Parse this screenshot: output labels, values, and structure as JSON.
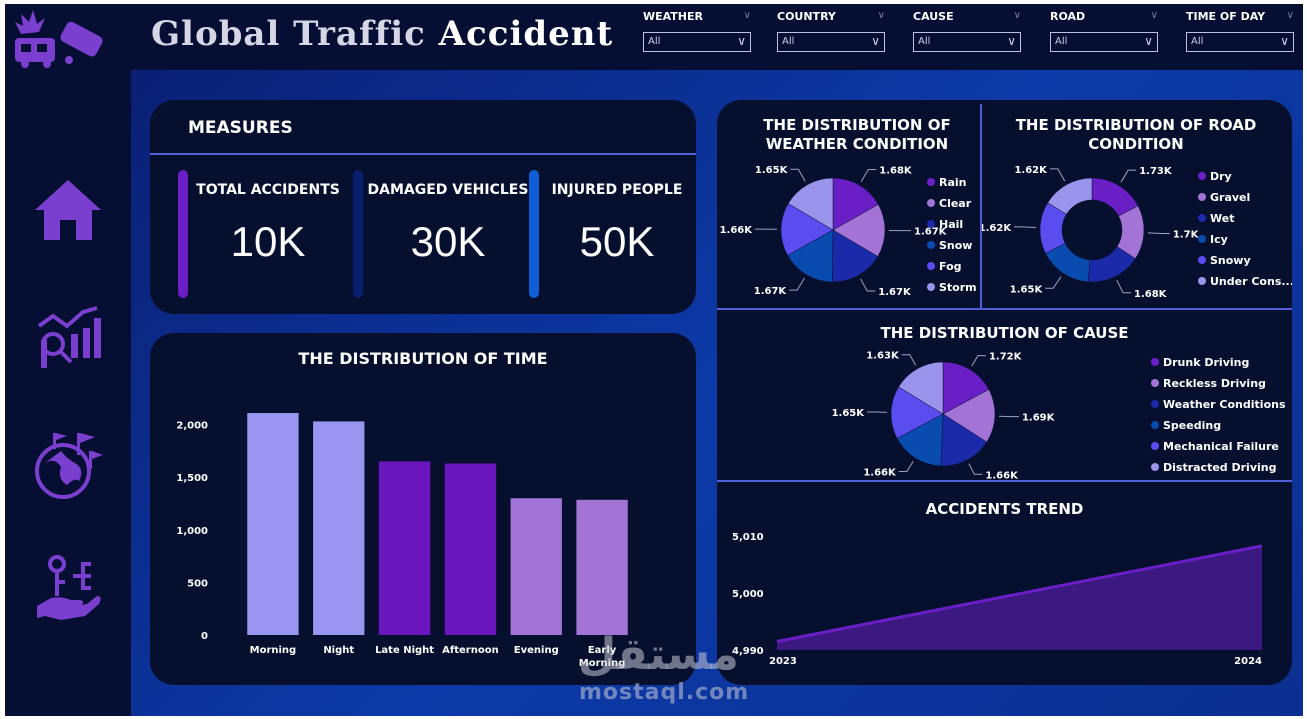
{
  "header": {
    "title_part1": "Global Traffic",
    "title_part2": "Accident"
  },
  "sidebar": {
    "items": [
      {
        "icon": "home-icon"
      },
      {
        "icon": "analytics-icon"
      },
      {
        "icon": "globe-icon"
      },
      {
        "icon": "key-hand-icon"
      }
    ]
  },
  "filters": [
    {
      "label": "WEATHER",
      "value": "All"
    },
    {
      "label": "COUNTRY",
      "value": "All"
    },
    {
      "label": "CAUSE",
      "value": "All"
    },
    {
      "label": "ROAD",
      "value": "All"
    },
    {
      "label": "TIME OF DAY",
      "value": "All"
    }
  ],
  "measures": {
    "title": "MEASURES",
    "kpis": [
      {
        "label": "TOTAL ACCIDENTS",
        "value": "10K",
        "color": "#6a1fc6"
      },
      {
        "label": "DAMAGED VEHICLES",
        "value": "30K",
        "color": "#0a1f6e"
      },
      {
        "label": "INJURED PEOPLE",
        "value": "50K",
        "color": "#0d5ed8"
      }
    ]
  },
  "chart_data": [
    {
      "type": "bar",
      "title": "THE DISTRIBUTION OF TIME",
      "categories": [
        "Morning",
        "Night",
        "Late Night",
        "Afternoon",
        "Evening",
        "Early Morning"
      ],
      "values": [
        2110,
        2030,
        1650,
        1630,
        1300,
        1285
      ],
      "colors": [
        "#9995f0",
        "#9995f0",
        "#6a16bd",
        "#6a16bd",
        "#a374d6",
        "#a374d6"
      ],
      "yticks": [
        0,
        500,
        1000,
        1500,
        2000
      ],
      "ytick_labels": [
        "0",
        "500",
        "1,000",
        "1,500",
        "2,000"
      ],
      "ylim": [
        0,
        2300
      ]
    },
    {
      "type": "pie",
      "title": "THE DISTRIBUTION OF WEATHER CONDITION",
      "labels": [
        "Rain",
        "Clear",
        "Hail",
        "Snow",
        "Fog",
        "Storm"
      ],
      "values": [
        1.68,
        1.67,
        1.67,
        1.67,
        1.66,
        1.65
      ],
      "data_labels": [
        "1.68K",
        "1.67K",
        "1.67K",
        "1.67K",
        "1.66K",
        "1.65K"
      ],
      "colors": [
        "#6a1fc6",
        "#a374d6",
        "#1a2aa8",
        "#0a4bb0",
        "#5b4cf0",
        "#9a94ec"
      ]
    },
    {
      "type": "pie",
      "title": "THE DISTRIBUTION OF ROAD CONDITION",
      "donut": true,
      "labels": [
        "Dry",
        "Gravel",
        "Wet",
        "Icy",
        "Snowy",
        "Under Cons..."
      ],
      "values": [
        1.73,
        1.7,
        1.68,
        1.65,
        1.62,
        1.62
      ],
      "data_labels": [
        "1.73K",
        "1.7K",
        "1.68K",
        "1.65K",
        "1.62K",
        "1.62K"
      ],
      "colors": [
        "#6a1fc6",
        "#a374d6",
        "#1a2aa8",
        "#0a4bb0",
        "#5b4cf0",
        "#9a94ec"
      ]
    },
    {
      "type": "pie",
      "title": "THE DISTRIBUTION OF CAUSE",
      "labels": [
        "Drunk Driving",
        "Reckless Driving",
        "Weather Conditions",
        "Speeding",
        "Mechanical Failure",
        "Distracted Driving"
      ],
      "values": [
        1.72,
        1.69,
        1.66,
        1.66,
        1.65,
        1.63
      ],
      "data_labels": [
        "1.72K",
        "1.69K",
        "1.66K",
        "1.66K",
        "1.65K",
        "1.63K"
      ],
      "colors": [
        "#6a1fc6",
        "#a374d6",
        "#1a2aa8",
        "#0a4bb0",
        "#5b4cf0",
        "#9a94ec"
      ]
    },
    {
      "type": "area",
      "title": "ACCIDENTS TREND",
      "x": [
        "2023",
        "2024"
      ],
      "values": [
        4991.5,
        5008.3
      ],
      "yticks": [
        4990,
        5000,
        5010
      ],
      "ytick_labels": [
        "4,990",
        "5,000",
        "5,010"
      ],
      "ylim": [
        4990,
        5012.5
      ],
      "color": "#6a1fc6"
    }
  ],
  "watermark": {
    "arabic": "مستقل",
    "latin": "mostaql.com"
  }
}
